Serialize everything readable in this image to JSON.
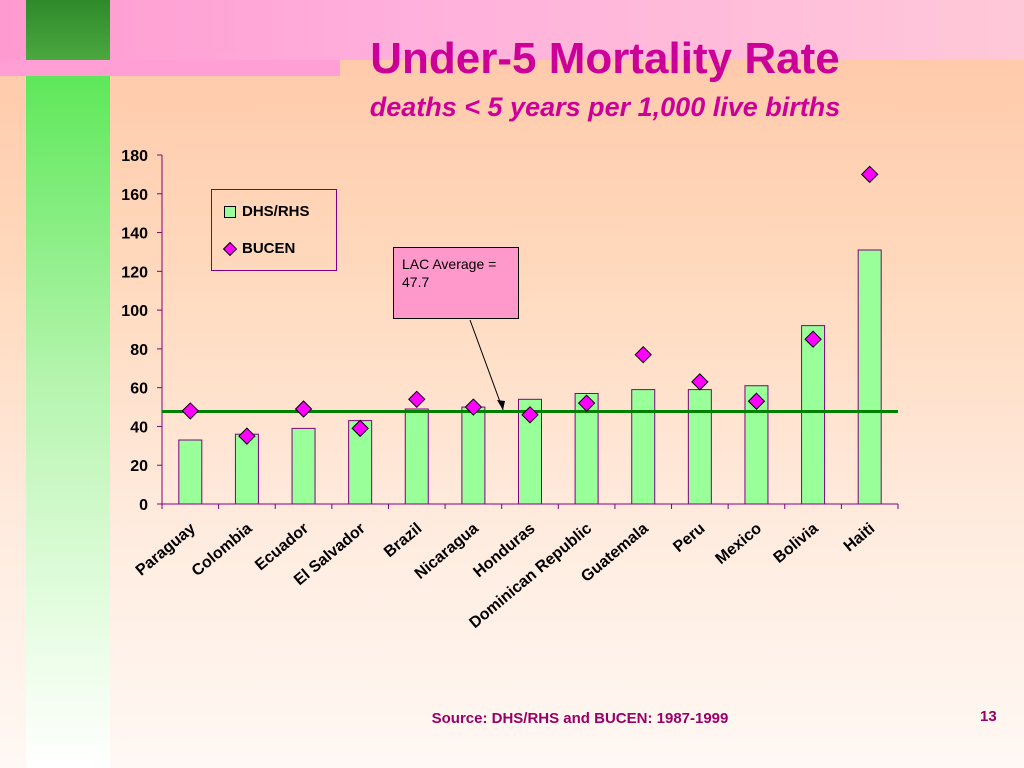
{
  "slide": {
    "title": "Under-5 Mortality Rate",
    "subtitle": "deaths < 5 years per 1,000 live births",
    "source": "Source:  DHS/RHS and BUCEN:  1987-1999",
    "page_number": "13"
  },
  "callout": {
    "text": "LAC Average = 47.7"
  },
  "colors": {
    "title": "#cc0099",
    "bar_fill": "#99ff99",
    "diamond_fill": "#ff00ff",
    "average_line": "#008000",
    "axis": "#800080",
    "callout_fill": "#ff99cc"
  },
  "chart_data": {
    "type": "bar",
    "categories": [
      "Paraguay",
      "Colombia",
      "Ecuador",
      "El Salvador",
      "Brazil",
      "Nicaragua",
      "Honduras",
      "Dominican Republic",
      "Guatemala",
      "Peru",
      "Mexico",
      "Bolivia",
      "Haiti"
    ],
    "series": [
      {
        "name": "DHS/RHS",
        "kind": "bar",
        "values": [
          33,
          36,
          39,
          43,
          49,
          50,
          54,
          57,
          59,
          59,
          61,
          92,
          131
        ]
      },
      {
        "name": "BUCEN",
        "kind": "marker",
        "marker": "diamond",
        "values": [
          48,
          35,
          49,
          39,
          54,
          50,
          46,
          52,
          77,
          63,
          53,
          85,
          170
        ]
      }
    ],
    "reference_line": {
      "value": 47.7,
      "label": "LAC Average = 47.7"
    },
    "ylim": [
      0,
      180
    ],
    "yticks": [
      0,
      20,
      40,
      60,
      80,
      100,
      120,
      140,
      160,
      180
    ],
    "legend": {
      "position": "top-left",
      "entries": [
        "DHS/RHS",
        "BUCEN"
      ]
    },
    "grid": false
  }
}
